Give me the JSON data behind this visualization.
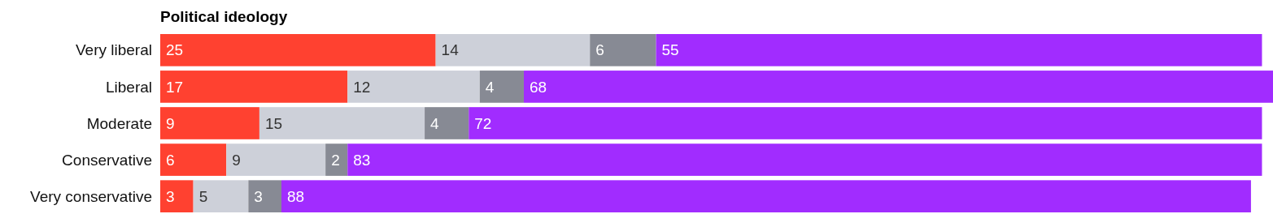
{
  "chart_data": {
    "type": "bar",
    "title": "Political ideology",
    "orientation": "horizontal",
    "stacked": true,
    "data_labels": true,
    "tick_labels": "y",
    "xlim": [
      0,
      101
    ],
    "categories": [
      "Very liberal",
      "Liberal",
      "Moderate",
      "Conservative",
      "Very conservative"
    ],
    "series": [
      {
        "color": "#ff4130",
        "values": [
          25,
          17,
          9,
          6,
          3
        ]
      },
      {
        "color": "#cdd0d9",
        "values": [
          14,
          12,
          15,
          9,
          5
        ]
      },
      {
        "color": "#878a94",
        "values": [
          6,
          4,
          4,
          2,
          3
        ]
      },
      {
        "color": "#a12cff",
        "values": [
          55,
          68,
          72,
          83,
          88
        ]
      }
    ]
  }
}
